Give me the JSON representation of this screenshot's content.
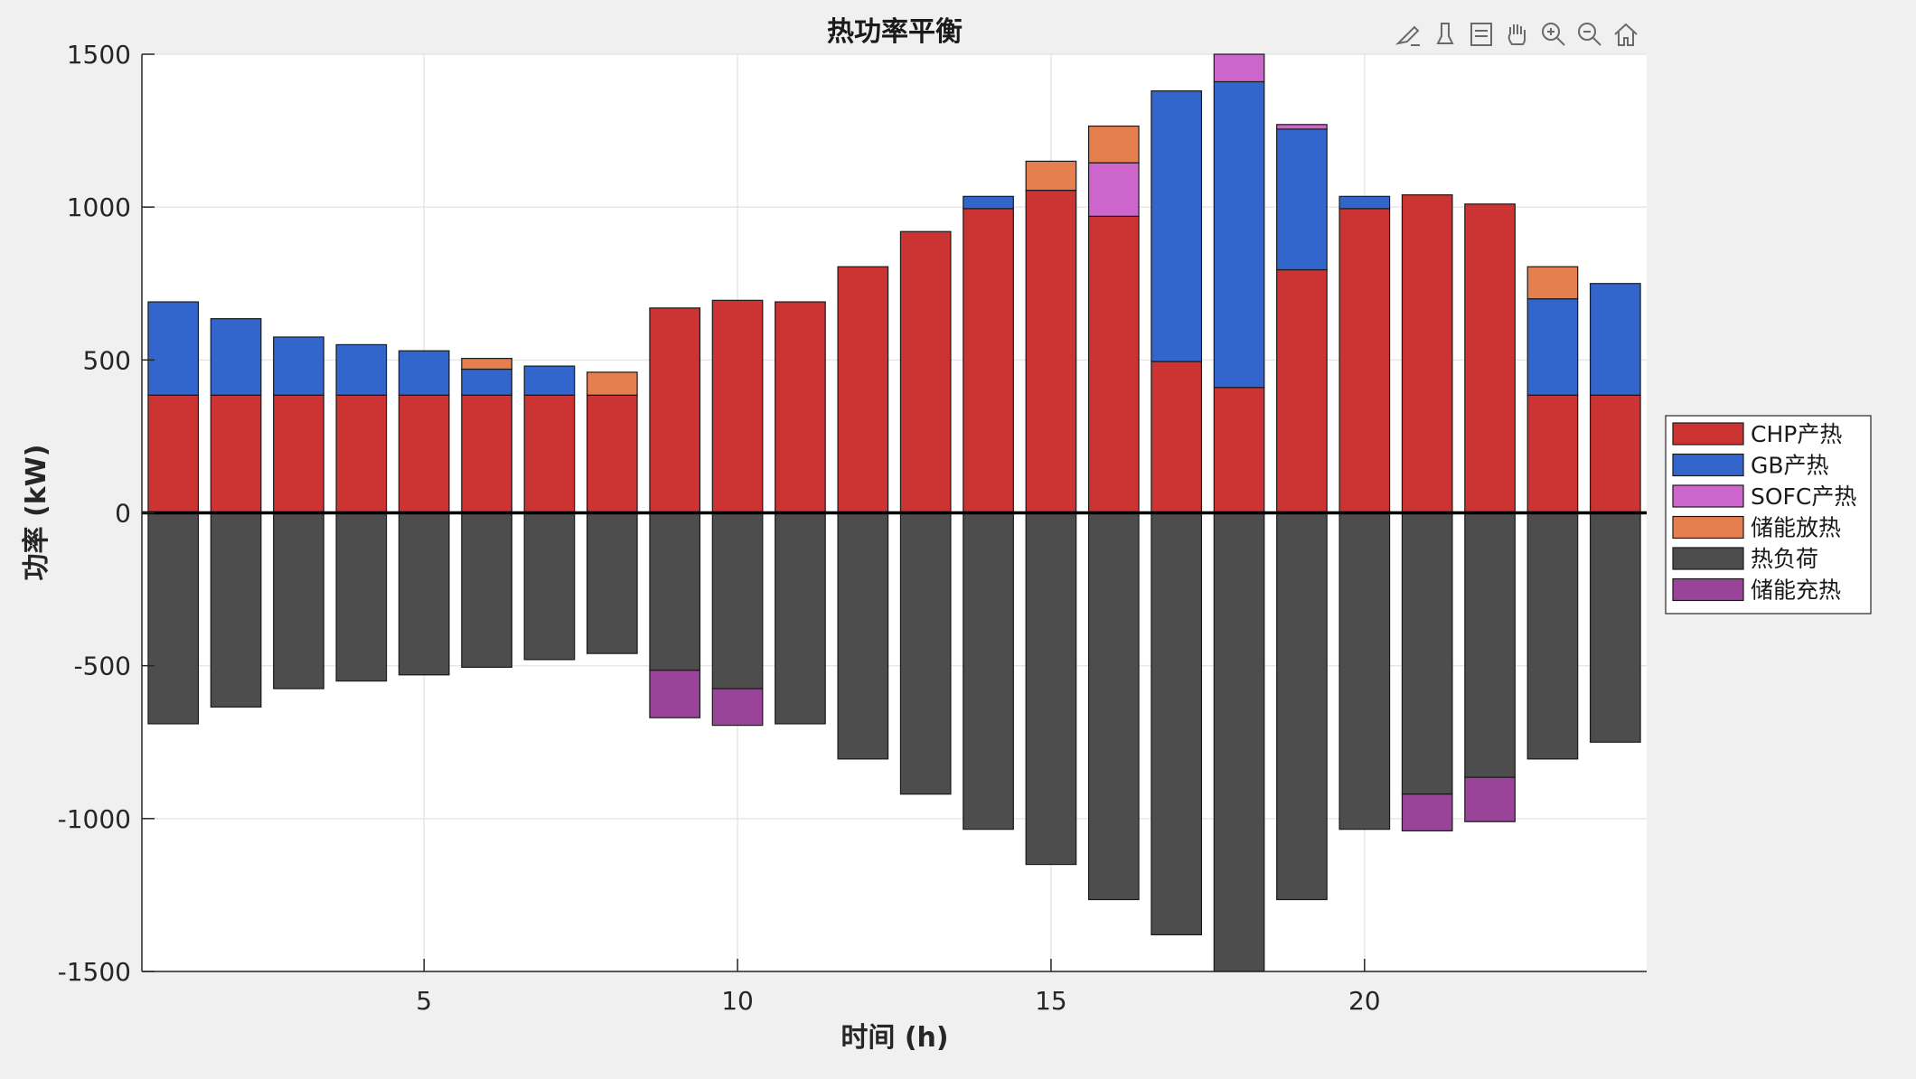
{
  "toolbar": {
    "icons": [
      "brush-edit-icon",
      "data-tip-icon",
      "legend-toggle-icon",
      "pan-hand-icon",
      "zoom-in-icon",
      "zoom-out-icon",
      "home-icon"
    ]
  },
  "chart_data": {
    "type": "bar",
    "stacked": true,
    "title": "热功率平衡",
    "xlabel": "时间 (h)",
    "ylabel": "功率 (kW)",
    "xlim": [
      0.5,
      24.5
    ],
    "ylim": [
      -1500,
      1500
    ],
    "xticks": [
      5,
      10,
      15,
      20
    ],
    "yticks": [
      -1500,
      -1000,
      -500,
      0,
      500,
      1000,
      1500
    ],
    "grid": true,
    "legend_position": "right",
    "categories": [
      1,
      2,
      3,
      4,
      5,
      6,
      7,
      8,
      9,
      10,
      11,
      12,
      13,
      14,
      15,
      16,
      17,
      18,
      19,
      20,
      21,
      22,
      23,
      24
    ],
    "series": [
      {
        "name": "CHP产热",
        "color": "#cc3333",
        "values": [
          385,
          385,
          385,
          385,
          385,
          385,
          385,
          385,
          670,
          695,
          690,
          805,
          920,
          995,
          1055,
          970,
          495,
          410,
          795,
          995,
          1040,
          1010,
          385,
          385
        ]
      },
      {
        "name": "GB产热",
        "color": "#3366cc",
        "values": [
          305,
          250,
          190,
          165,
          145,
          85,
          95,
          0,
          0,
          0,
          0,
          0,
          0,
          40,
          0,
          0,
          885,
          1000,
          460,
          40,
          0,
          0,
          315,
          365
        ]
      },
      {
        "name": "SOFC产热",
        "color": "#cc66cc",
        "values": [
          0,
          0,
          0,
          0,
          0,
          0,
          0,
          0,
          0,
          0,
          0,
          0,
          0,
          0,
          0,
          175,
          0,
          90,
          15,
          0,
          0,
          0,
          0,
          0
        ]
      },
      {
        "name": "储能放热",
        "color": "#e67f50",
        "values": [
          0,
          0,
          0,
          0,
          0,
          35,
          0,
          75,
          0,
          0,
          0,
          0,
          0,
          0,
          95,
          120,
          0,
          0,
          0,
          0,
          0,
          0,
          105,
          0
        ]
      },
      {
        "name": "热负荷",
        "color": "#4d4d4d",
        "values": [
          -690,
          -635,
          -575,
          -550,
          -530,
          -505,
          -480,
          -460,
          -515,
          -575,
          -690,
          -805,
          -920,
          -1035,
          -1150,
          -1265,
          -1380,
          -1500,
          -1265,
          -1035,
          -920,
          -865,
          -805,
          -750
        ]
      },
      {
        "name": "储能充热",
        "color": "#994499",
        "values": [
          0,
          0,
          0,
          0,
          0,
          0,
          0,
          0,
          -155,
          -120,
          0,
          0,
          0,
          0,
          0,
          0,
          0,
          0,
          0,
          0,
          -120,
          -145,
          0,
          0
        ]
      }
    ]
  }
}
